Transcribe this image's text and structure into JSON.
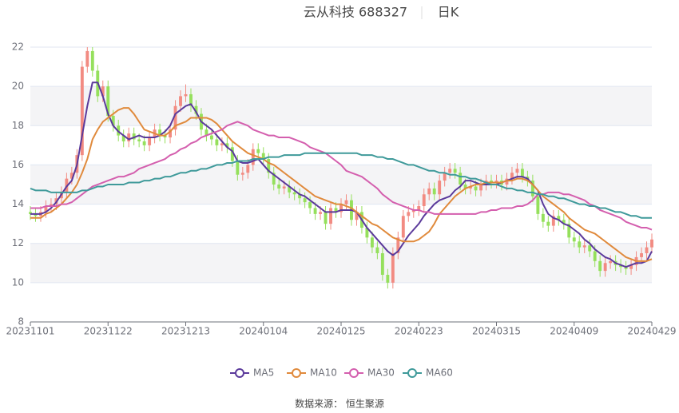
{
  "chart_data": {
    "type": "candlestick",
    "title": "云从科技 688327",
    "subtitle": "日K",
    "source": "数据来源： 恒生聚源",
    "categories": [
      "20231101",
      null,
      null,
      null,
      null,
      null,
      null,
      null,
      null,
      null,
      null,
      null,
      null,
      null,
      null,
      "20231122",
      null,
      null,
      null,
      null,
      null,
      null,
      null,
      null,
      null,
      null,
      null,
      null,
      null,
      null,
      "20231213",
      null,
      null,
      null,
      null,
      null,
      null,
      null,
      null,
      null,
      null,
      null,
      null,
      null,
      null,
      "20240104",
      null,
      null,
      null,
      null,
      null,
      null,
      null,
      null,
      null,
      null,
      null,
      null,
      null,
      null,
      "20240125",
      null,
      null,
      null,
      null,
      null,
      null,
      null,
      null,
      null,
      null,
      null,
      null,
      null,
      null,
      "20240223",
      null,
      null,
      null,
      null,
      null,
      null,
      null,
      null,
      null,
      null,
      null,
      null,
      null,
      null,
      "20240315",
      null,
      null,
      null,
      null,
      null,
      null,
      null,
      null,
      null,
      null,
      null,
      null,
      null,
      null,
      "20240409",
      null,
      null,
      null,
      null,
      null,
      null,
      null,
      null,
      null,
      null,
      null,
      null,
      null,
      null,
      "20240429"
    ],
    "candles": {
      "up_color": "#f28b82",
      "down_color": "#95e05c",
      "open": [
        13.6,
        13.5,
        13.4,
        13.6,
        13.9,
        14.0,
        14.3,
        14.6,
        15.3,
        15.6,
        16.5,
        21.0,
        21.8,
        20.8,
        19.5,
        20.0,
        18.5,
        18.0,
        17.5,
        17.2,
        17.6,
        17.3,
        17.2,
        17.0,
        17.4,
        17.8,
        17.5,
        17.4,
        17.8,
        19.0,
        19.5,
        19.6,
        19.0,
        18.6,
        17.8,
        17.5,
        17.3,
        17.0,
        17.1,
        16.9,
        16.2,
        15.5,
        15.6,
        16.0,
        16.8,
        16.6,
        16.3,
        15.6,
        15.0,
        14.8,
        14.9,
        14.6,
        14.5,
        14.3,
        14.1,
        13.8,
        13.5,
        13.6,
        13.0,
        13.8,
        13.6,
        14.0,
        14.2,
        13.2,
        13.6,
        12.8,
        12.3,
        11.8,
        11.5,
        10.4,
        10.0,
        11.5,
        12.3,
        13.4,
        13.6,
        13.7,
        13.9,
        14.5,
        14.8,
        14.5,
        15.2,
        15.6,
        15.8,
        15.6,
        15.0,
        14.8,
        14.9,
        14.7,
        15.0,
        15.2,
        15.1,
        15.2,
        15.0,
        15.3,
        15.6,
        15.8,
        15.4,
        15.2,
        14.4,
        13.5,
        13.1,
        12.9,
        13.4,
        13.2,
        13.0,
        12.3,
        12.1,
        11.8,
        11.9,
        11.6,
        11.1,
        10.6,
        11.0,
        11.1,
        10.9,
        10.8,
        10.7,
        10.9,
        11.3,
        11.5,
        11.8
      ],
      "close": [
        13.5,
        13.4,
        13.6,
        13.9,
        14.0,
        14.3,
        14.6,
        15.3,
        15.6,
        16.5,
        21.0,
        21.8,
        20.8,
        19.5,
        20.0,
        18.5,
        18.0,
        17.5,
        17.2,
        17.6,
        17.3,
        17.2,
        17.0,
        17.4,
        17.8,
        17.5,
        17.4,
        17.8,
        19.0,
        19.5,
        19.6,
        19.0,
        18.6,
        17.8,
        17.5,
        17.3,
        17.0,
        17.1,
        16.9,
        16.2,
        15.5,
        15.6,
        16.0,
        16.8,
        16.6,
        16.3,
        15.6,
        15.0,
        14.8,
        14.9,
        14.6,
        14.5,
        14.3,
        14.1,
        13.8,
        13.5,
        13.6,
        13.0,
        13.8,
        13.6,
        14.0,
        14.2,
        13.2,
        13.6,
        12.8,
        12.3,
        11.8,
        11.5,
        10.4,
        10.0,
        11.5,
        12.3,
        13.4,
        13.6,
        13.7,
        13.9,
        14.5,
        14.8,
        14.5,
        15.2,
        15.6,
        15.8,
        15.6,
        15.0,
        14.8,
        14.9,
        14.7,
        15.0,
        15.2,
        15.1,
        15.2,
        15.0,
        15.3,
        15.6,
        15.8,
        15.4,
        15.2,
        14.4,
        13.5,
        13.1,
        12.9,
        13.4,
        13.2,
        13.0,
        12.3,
        12.1,
        11.8,
        11.9,
        11.6,
        11.1,
        10.6,
        11.0,
        11.1,
        10.9,
        10.8,
        10.7,
        10.9,
        11.3,
        11.5,
        11.8,
        12.2
      ],
      "low": [
        13.2,
        13.1,
        13.1,
        13.3,
        13.6,
        13.7,
        14.0,
        14.3,
        15.0,
        15.3,
        16.2,
        20.7,
        20.5,
        19.2,
        19.2,
        18.2,
        17.7,
        17.2,
        16.9,
        16.9,
        17.0,
        16.9,
        16.7,
        16.7,
        17.1,
        17.2,
        17.1,
        17.1,
        17.5,
        18.7,
        19.2,
        18.7,
        18.3,
        17.5,
        17.2,
        17.0,
        16.7,
        16.7,
        16.6,
        15.9,
        15.2,
        15.2,
        15.3,
        15.7,
        16.3,
        16.0,
        15.3,
        14.7,
        14.5,
        14.5,
        14.3,
        14.2,
        14.0,
        13.8,
        13.5,
        13.2,
        13.2,
        12.7,
        12.7,
        13.3,
        13.3,
        13.7,
        12.9,
        12.9,
        12.5,
        12.0,
        11.5,
        11.2,
        10.1,
        9.7,
        9.7,
        11.2,
        12.0,
        13.1,
        13.3,
        13.4,
        13.6,
        14.2,
        14.2,
        14.2,
        14.9,
        15.3,
        15.3,
        14.7,
        14.5,
        14.5,
        14.4,
        14.4,
        14.7,
        14.8,
        14.8,
        14.7,
        14.7,
        15.0,
        15.3,
        15.1,
        14.9,
        14.1,
        13.2,
        12.8,
        12.6,
        12.6,
        12.9,
        12.7,
        12.0,
        11.8,
        11.5,
        11.5,
        11.3,
        10.8,
        10.3,
        10.3,
        10.7,
        10.6,
        10.5,
        10.4,
        10.4,
        10.6,
        11.0,
        11.2,
        11.5
      ],
      "high": [
        13.9,
        13.8,
        13.9,
        14.2,
        14.3,
        14.6,
        14.9,
        15.6,
        15.9,
        16.8,
        21.3,
        22.0,
        22.0,
        21.1,
        20.3,
        20.3,
        18.8,
        18.3,
        17.8,
        17.9,
        17.9,
        17.6,
        17.5,
        17.7,
        18.1,
        18.1,
        17.8,
        18.1,
        19.3,
        19.8,
        20.1,
        19.9,
        19.3,
        18.9,
        18.1,
        17.8,
        17.6,
        17.4,
        17.4,
        17.2,
        16.5,
        15.9,
        16.3,
        17.1,
        17.1,
        16.9,
        16.6,
        15.9,
        15.3,
        15.2,
        15.2,
        14.9,
        14.8,
        14.6,
        14.4,
        14.1,
        13.9,
        13.9,
        14.1,
        14.1,
        14.3,
        14.5,
        14.5,
        13.9,
        13.9,
        13.1,
        12.6,
        12.1,
        11.8,
        10.7,
        11.8,
        12.6,
        13.7,
        13.9,
        14.0,
        14.2,
        14.8,
        15.1,
        15.1,
        15.5,
        15.9,
        16.1,
        16.1,
        15.9,
        15.3,
        15.2,
        15.2,
        15.3,
        15.5,
        15.5,
        15.5,
        15.5,
        15.6,
        15.9,
        16.1,
        16.1,
        15.7,
        15.5,
        14.7,
        13.8,
        13.4,
        13.7,
        13.7,
        13.5,
        13.3,
        12.6,
        12.4,
        12.2,
        12.2,
        11.9,
        11.4,
        11.3,
        11.4,
        11.4,
        11.2,
        11.1,
        11.2,
        11.6,
        11.8,
        12.1,
        12.5
      ]
    },
    "series": [
      {
        "name": "MA5",
        "color": "#5b3a9b",
        "values": [
          13.5,
          13.5,
          13.5,
          13.6,
          13.8,
          14.1,
          14.5,
          14.9,
          15.2,
          16.0,
          17.5,
          19.0,
          20.2,
          20.2,
          19.5,
          18.6,
          18.0,
          17.7,
          17.5,
          17.3,
          17.4,
          17.5,
          17.4,
          17.4,
          17.4,
          17.5,
          17.7,
          18.0,
          18.6,
          18.8,
          19.0,
          19.1,
          18.7,
          18.2,
          18.0,
          17.8,
          17.5,
          17.2,
          16.9,
          16.7,
          16.2,
          16.1,
          16.1,
          16.2,
          16.3,
          16.0,
          15.7,
          15.5,
          15.3,
          15.1,
          14.9,
          14.7,
          14.5,
          14.4,
          14.2,
          14.0,
          13.8,
          13.6,
          13.6,
          13.6,
          13.7,
          13.7,
          13.7,
          13.6,
          13.2,
          12.8,
          12.5,
          12.2,
          11.9,
          11.6,
          11.4,
          11.6,
          12.0,
          12.4,
          12.7,
          13.0,
          13.4,
          13.7,
          14.0,
          14.2,
          14.3,
          14.4,
          14.7,
          14.9,
          15.2,
          15.2,
          15.1,
          15.0,
          15.0,
          15.0,
          15.0,
          15.1,
          15.2,
          15.3,
          15.4,
          15.4,
          15.3,
          15.0,
          14.7,
          14.0,
          13.5,
          13.3,
          13.2,
          13.0,
          12.9,
          12.7,
          12.5,
          12.2,
          12.0,
          11.7,
          11.5,
          11.3,
          11.2,
          11.0,
          10.9,
          10.8,
          10.9,
          11.0,
          11.0,
          11.1,
          11.6
        ]
      },
      {
        "name": "MA10",
        "color": "#e08a3c",
        "values": [
          13.3,
          13.3,
          13.3,
          13.5,
          13.6,
          13.8,
          14.0,
          14.3,
          14.6,
          15.0,
          15.6,
          16.3,
          17.3,
          17.8,
          18.2,
          18.4,
          18.6,
          18.8,
          18.9,
          18.9,
          18.6,
          18.2,
          17.8,
          17.7,
          17.6,
          17.5,
          17.5,
          17.7,
          18.0,
          18.1,
          18.2,
          18.4,
          18.4,
          18.4,
          18.4,
          18.3,
          18.1,
          17.8,
          17.5,
          17.2,
          17.0,
          16.8,
          16.6,
          16.5,
          16.4,
          16.3,
          16.1,
          16.0,
          15.8,
          15.6,
          15.4,
          15.2,
          15.0,
          14.8,
          14.6,
          14.4,
          14.3,
          14.2,
          14.1,
          14.0,
          14.0,
          13.9,
          13.8,
          13.6,
          13.4,
          13.2,
          13.0,
          12.9,
          12.7,
          12.5,
          12.3,
          12.2,
          12.1,
          12.1,
          12.1,
          12.2,
          12.4,
          12.6,
          13.0,
          13.5,
          13.8,
          14.1,
          14.4,
          14.6,
          14.8,
          14.9,
          15.0,
          15.0,
          15.1,
          15.1,
          15.1,
          15.1,
          15.2,
          15.2,
          15.3,
          15.3,
          15.2,
          15.0,
          14.7,
          14.4,
          14.2,
          14.0,
          13.8,
          13.6,
          13.3,
          13.1,
          12.9,
          12.7,
          12.6,
          12.5,
          12.3,
          12.1,
          11.9,
          11.7,
          11.5,
          11.3,
          11.2,
          11.1,
          11.1,
          11.1,
          11.2
        ]
      },
      {
        "name": "MA30",
        "color": "#d45fae",
        "values": [
          13.8,
          13.8,
          13.8,
          13.9,
          13.9,
          13.9,
          14.0,
          14.0,
          14.1,
          14.3,
          14.5,
          14.7,
          14.9,
          15.0,
          15.1,
          15.2,
          15.3,
          15.4,
          15.4,
          15.5,
          15.6,
          15.8,
          15.9,
          16.0,
          16.1,
          16.2,
          16.3,
          16.5,
          16.6,
          16.8,
          16.9,
          17.1,
          17.2,
          17.4,
          17.5,
          17.6,
          17.7,
          17.8,
          18.0,
          18.1,
          18.2,
          18.1,
          18.0,
          17.8,
          17.7,
          17.6,
          17.5,
          17.5,
          17.4,
          17.4,
          17.4,
          17.3,
          17.2,
          17.1,
          16.9,
          16.8,
          16.7,
          16.6,
          16.4,
          16.2,
          16.0,
          15.7,
          15.6,
          15.5,
          15.4,
          15.2,
          15.0,
          14.8,
          14.5,
          14.3,
          14.1,
          14.0,
          13.9,
          13.8,
          13.7,
          13.7,
          13.6,
          13.6,
          13.5,
          13.5,
          13.5,
          13.5,
          13.5,
          13.5,
          13.5,
          13.5,
          13.5,
          13.6,
          13.6,
          13.7,
          13.7,
          13.8,
          13.8,
          13.8,
          13.9,
          13.9,
          14.0,
          14.2,
          14.5,
          14.5,
          14.6,
          14.6,
          14.6,
          14.5,
          14.5,
          14.4,
          14.3,
          14.2,
          14.0,
          13.9,
          13.7,
          13.6,
          13.5,
          13.4,
          13.3,
          13.1,
          13.0,
          12.9,
          12.8,
          12.8,
          12.7
        ]
      },
      {
        "name": "MA60",
        "color": "#3f9a9a",
        "values": [
          14.8,
          14.7,
          14.7,
          14.7,
          14.6,
          14.6,
          14.6,
          14.6,
          14.6,
          14.6,
          14.7,
          14.7,
          14.8,
          14.9,
          14.9,
          15.0,
          15.0,
          15.0,
          15.0,
          15.1,
          15.1,
          15.1,
          15.2,
          15.2,
          15.3,
          15.3,
          15.4,
          15.4,
          15.5,
          15.6,
          15.6,
          15.7,
          15.7,
          15.8,
          15.8,
          15.9,
          16.0,
          16.0,
          16.1,
          16.1,
          16.2,
          16.2,
          16.2,
          16.3,
          16.3,
          16.3,
          16.4,
          16.4,
          16.4,
          16.5,
          16.5,
          16.5,
          16.5,
          16.6,
          16.6,
          16.6,
          16.6,
          16.6,
          16.6,
          16.6,
          16.6,
          16.6,
          16.6,
          16.6,
          16.5,
          16.5,
          16.5,
          16.4,
          16.4,
          16.3,
          16.3,
          16.2,
          16.1,
          16.0,
          16.0,
          15.9,
          15.8,
          15.7,
          15.7,
          15.6,
          15.6,
          15.5,
          15.5,
          15.4,
          15.4,
          15.3,
          15.3,
          15.2,
          15.1,
          15.0,
          15.0,
          14.9,
          14.8,
          14.8,
          14.7,
          14.7,
          14.6,
          14.6,
          14.5,
          14.5,
          14.4,
          14.4,
          14.3,
          14.3,
          14.2,
          14.1,
          14.0,
          14.0,
          13.9,
          13.9,
          13.8,
          13.8,
          13.7,
          13.6,
          13.6,
          13.5,
          13.4,
          13.4,
          13.3,
          13.3,
          13.3
        ]
      }
    ],
    "ylim": [
      8,
      22
    ],
    "yticks": [
      8,
      10,
      12,
      14,
      16,
      18,
      20,
      22
    ],
    "grid": true
  }
}
